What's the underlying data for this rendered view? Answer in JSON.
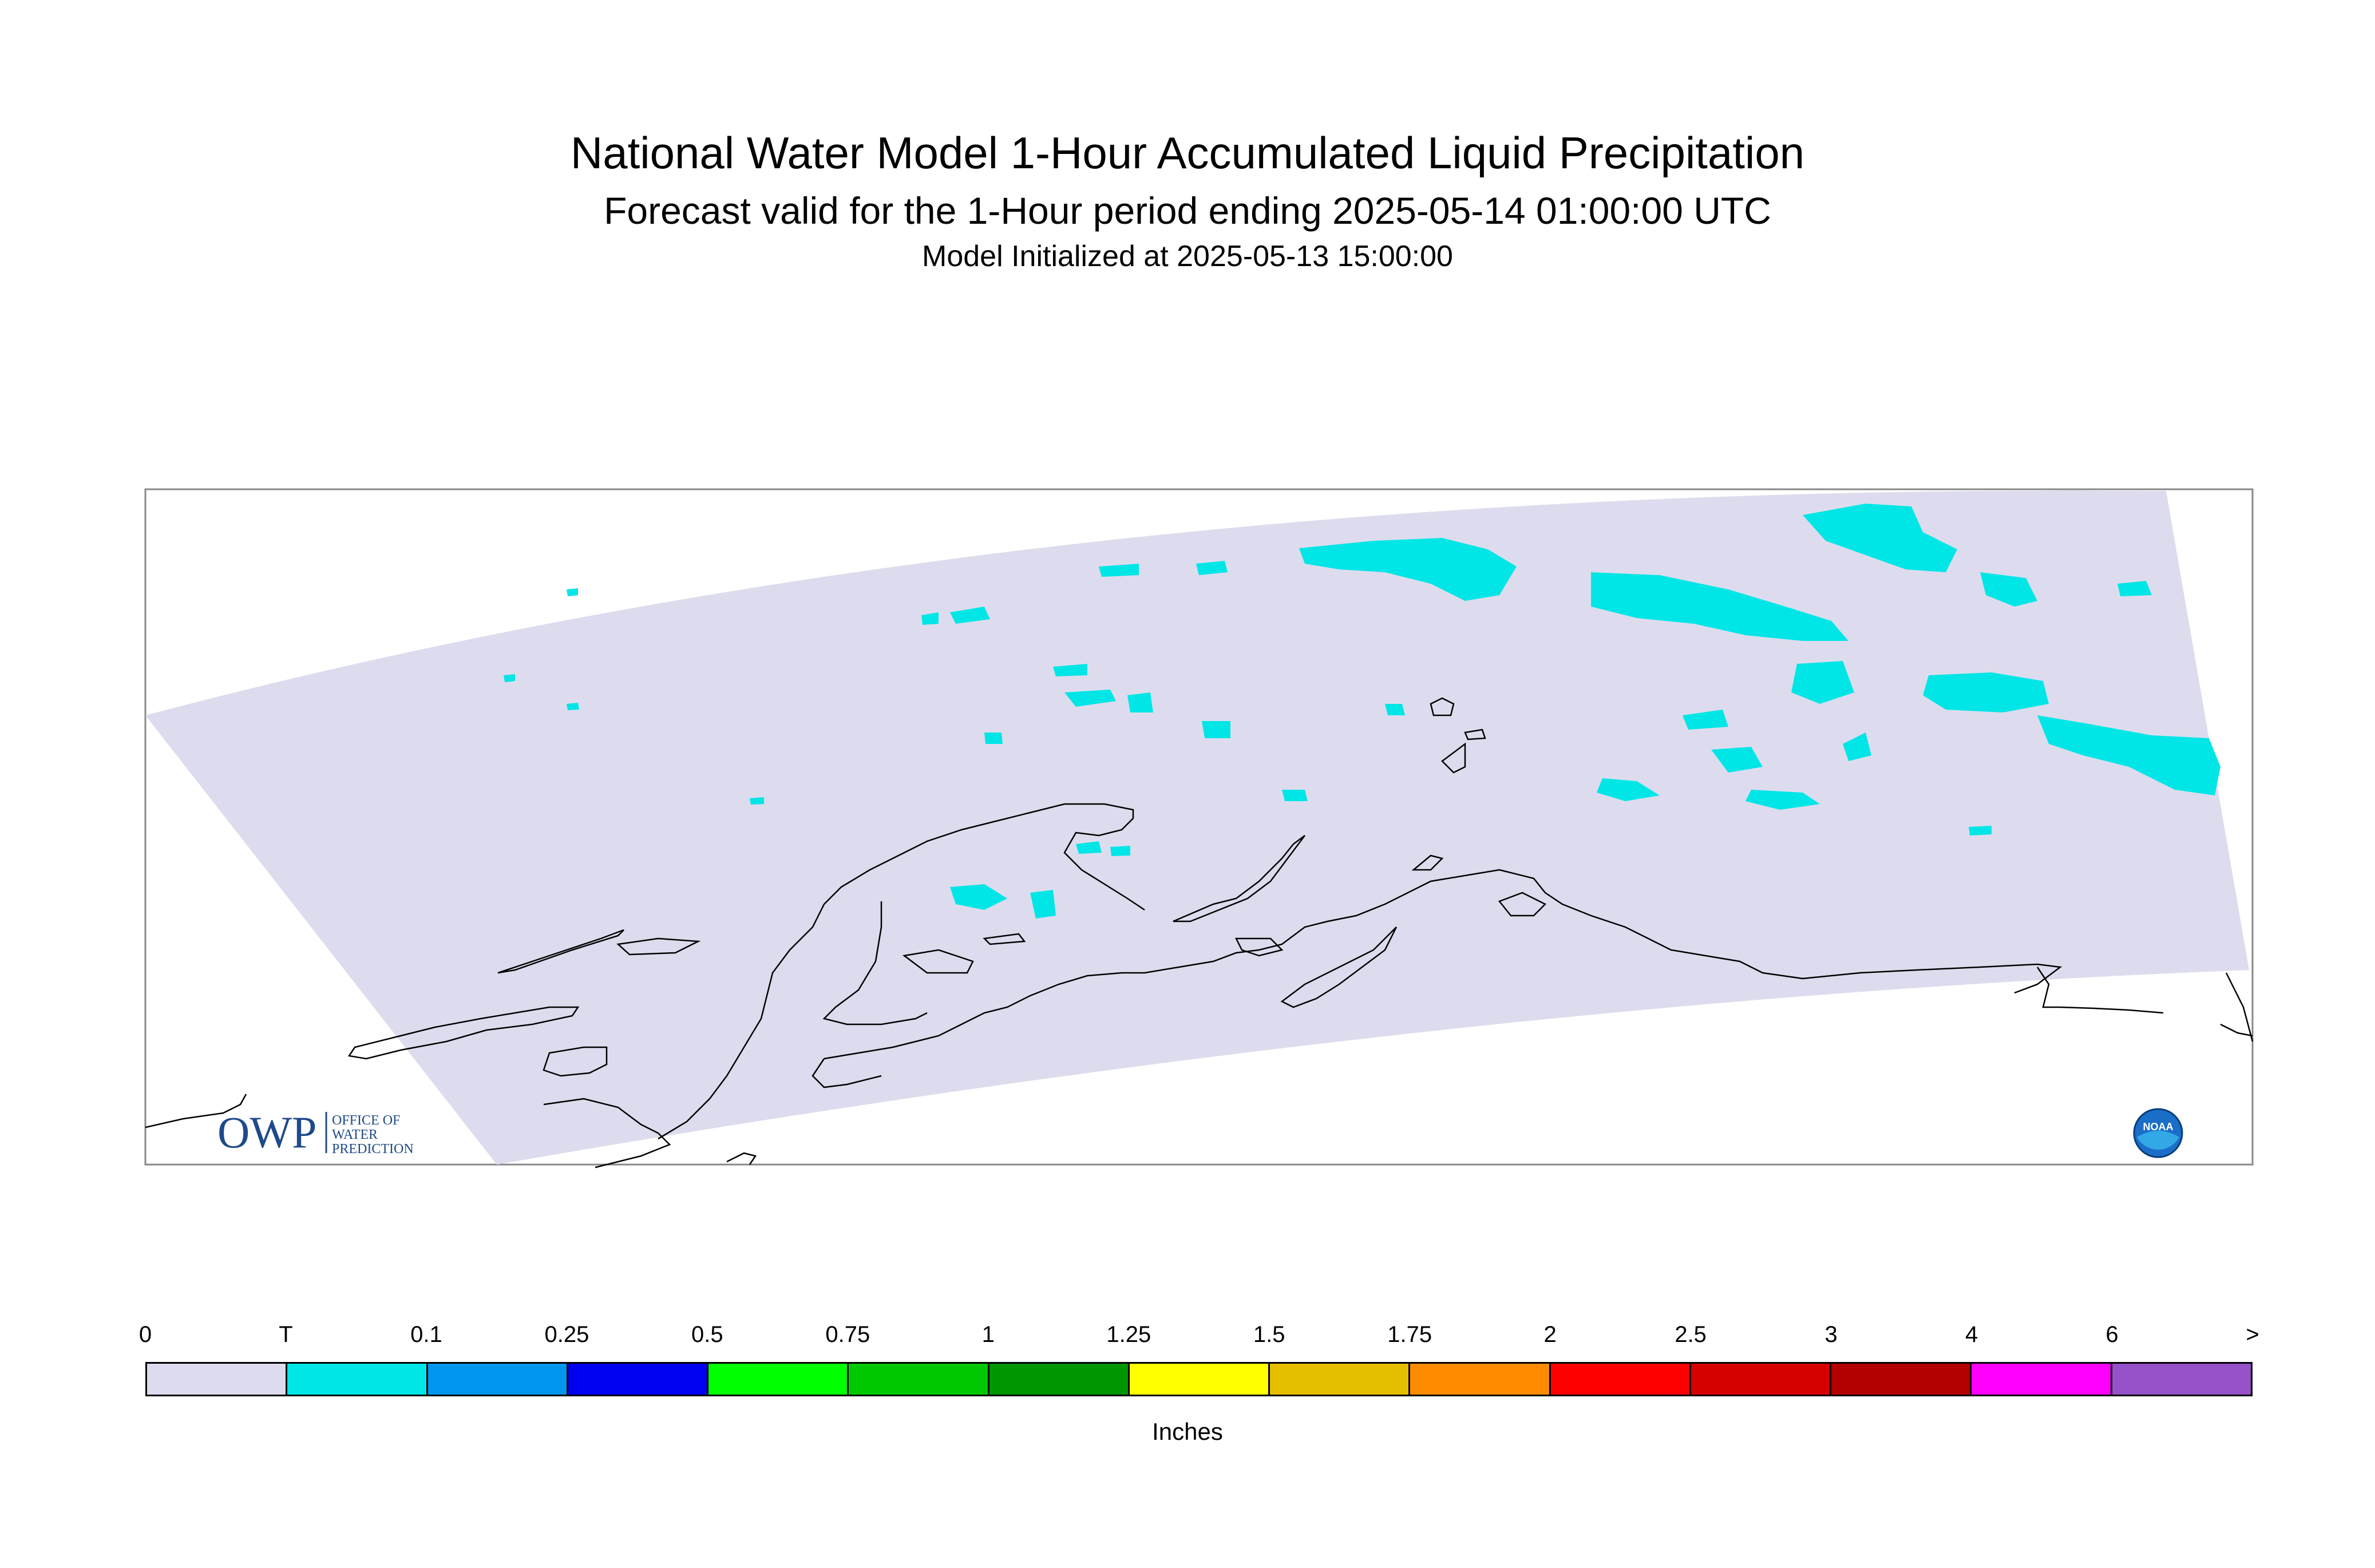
{
  "header": {
    "title": "National Water Model 1-Hour Accumulated Liquid Precipitation",
    "subtitle": "Forecast valid for the 1-Hour period ending 2025-05-14 01:00:00 UTC",
    "init": "Model Initialized at 2025-05-13 15:00:00"
  },
  "map": {
    "domain_fill": "#dcdcee",
    "precip_color": "#00e6e6",
    "coast_color": "#000000"
  },
  "colorbar": {
    "labels": [
      "0",
      "T",
      "0.1",
      "0.25",
      "0.5",
      "0.75",
      "1",
      "1.25",
      "1.5",
      "1.75",
      "2",
      "2.5",
      "3",
      "4",
      "6",
      ">"
    ],
    "colors": [
      "#dcdcee",
      "#00e6e6",
      "#0096f0",
      "#0000f0",
      "#00ff00",
      "#00c800",
      "#009600",
      "#ffff00",
      "#e6be00",
      "#ff8c00",
      "#ff0000",
      "#d70000",
      "#b40000",
      "#ff00ff",
      "#9650c8"
    ],
    "units": "Inches"
  },
  "logos": {
    "owp_main": "OWP",
    "owp_line1": "OFFICE OF",
    "owp_line2": "WATER",
    "owp_line3": "PREDICTION",
    "noaa": "NOAA"
  }
}
